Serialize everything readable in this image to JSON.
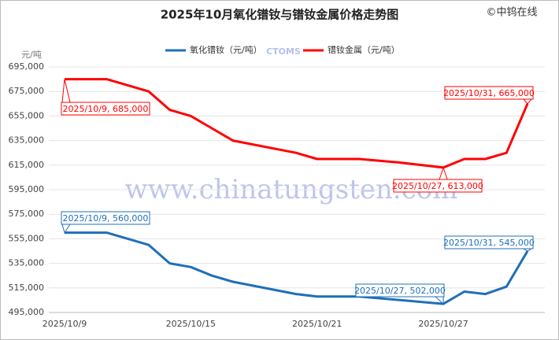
{
  "chart_data": {
    "type": "line",
    "title": "2025年10月氧化镨钕与镨钕金属价格走势图",
    "source": "©中钨在线",
    "watermark": "www.chinatungsten.com",
    "watermark_logo": "CTOMS",
    "y_unit": "元/吨",
    "x": [
      "2025/10/9",
      "2025/10/11",
      "2025/10/13",
      "2025/10/14",
      "2025/10/15",
      "2025/10/16",
      "2025/10/17",
      "2025/10/20",
      "2025/10/21",
      "2025/10/23",
      "2025/10/25",
      "2025/10/27",
      "2025/10/28",
      "2025/10/29",
      "2025/10/30",
      "2025/10/31"
    ],
    "xticks": [
      "2025/10/9",
      "2025/10/15",
      "2025/10/21",
      "2025/10/27"
    ],
    "series": [
      {
        "name": "氧化镨钕（元/吨）",
        "color": "#1f6fb8",
        "values": [
          560000,
          560000,
          550000,
          535000,
          532000,
          525000,
          520000,
          510000,
          508000,
          508000,
          505000,
          502000,
          512000,
          510000,
          516000,
          545000
        ]
      },
      {
        "name": "镨钕金属（元/吨）",
        "color": "#ff0000",
        "values": [
          685000,
          685000,
          675000,
          660000,
          655000,
          645000,
          635000,
          625000,
          620000,
          620000,
          617000,
          613000,
          620000,
          620000,
          625000,
          665000
        ]
      }
    ],
    "annotations": [
      "2025/10/9, 560,000",
      "2025/10/27, 502,000",
      "2025/10/31, 545,000",
      "2025/10/9, 685,000",
      "2025/10/27, 613,000",
      "2025/10/31, 665,000"
    ],
    "ylim": [
      495000,
      695000
    ],
    "yticks": [
      {
        "value": 495000,
        "label": "495,000"
      },
      {
        "value": 515000,
        "label": "515,000"
      },
      {
        "value": 535000,
        "label": "535,000"
      },
      {
        "value": 555000,
        "label": "555,000"
      },
      {
        "value": 575000,
        "label": "575,000"
      },
      {
        "value": 595000,
        "label": "595,000"
      },
      {
        "value": 615000,
        "label": "615,000"
      },
      {
        "value": 635000,
        "label": "635,000"
      },
      {
        "value": 655000,
        "label": "655,000"
      },
      {
        "value": 675000,
        "label": "675,000"
      },
      {
        "value": 695000,
        "label": "695,000"
      }
    ],
    "grid": true
  }
}
